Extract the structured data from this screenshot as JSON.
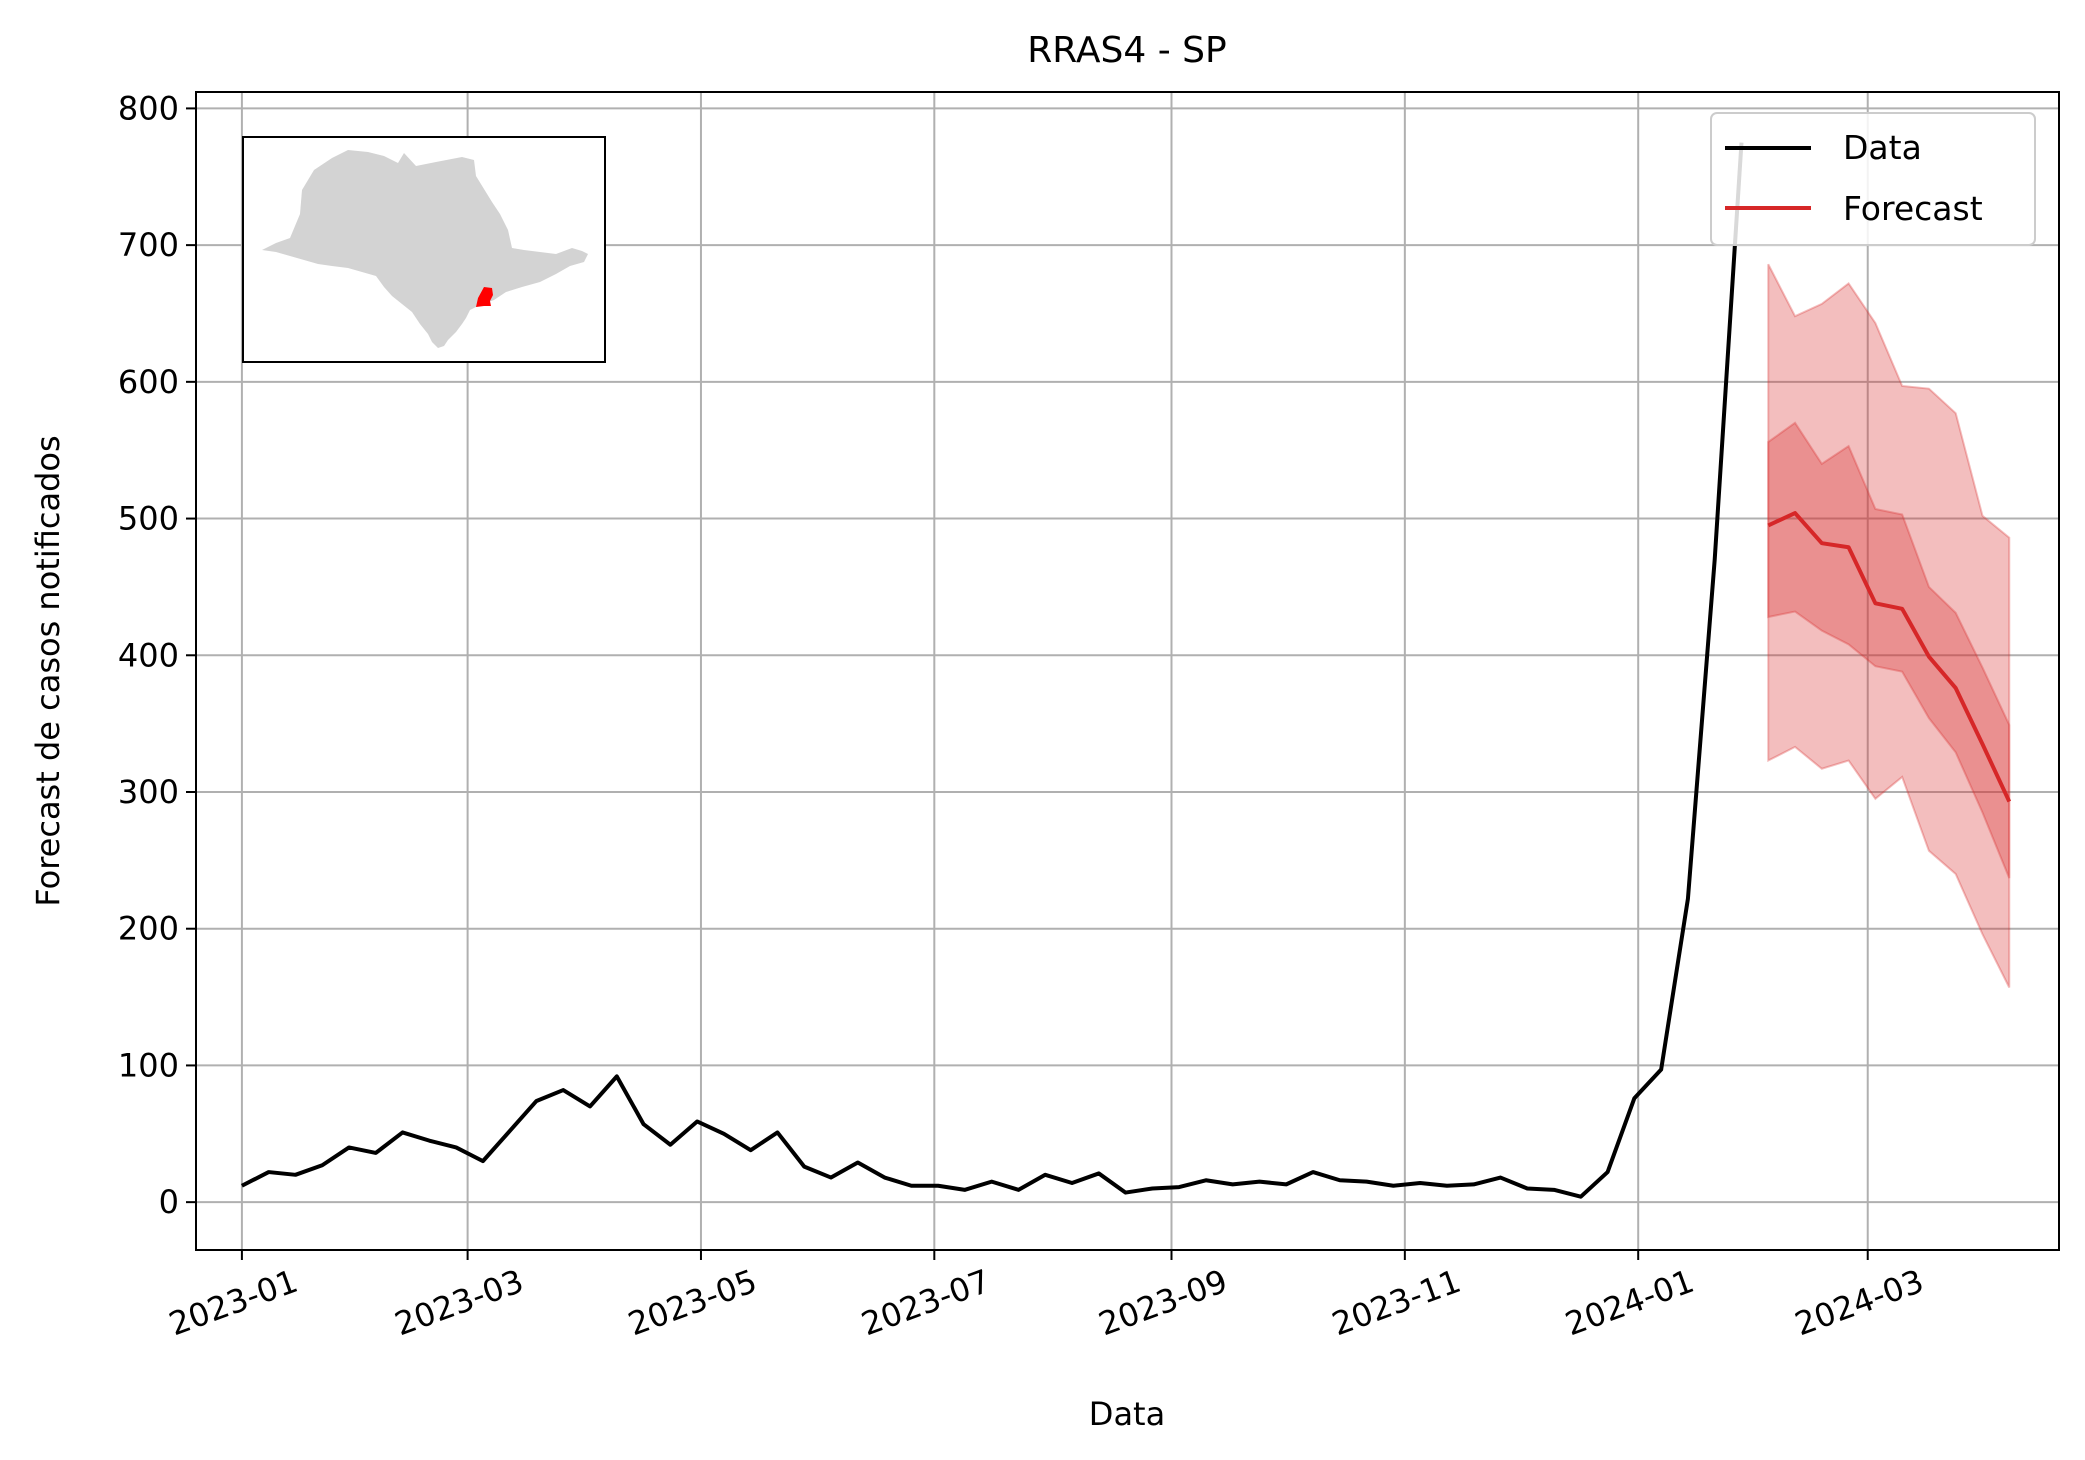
{
  "chart_data": {
    "type": "line",
    "title": "RRAS4 - SP",
    "xlabel": "Data",
    "ylabel": "Forecast de casos notificados",
    "xlim": [
      "2022-12-20",
      "2024-04-20"
    ],
    "ylim": [
      -35,
      812
    ],
    "grid": true,
    "legend_position": "top-right",
    "x_ticks": [
      {
        "date": "2023-01-01",
        "label": "2023-01"
      },
      {
        "date": "2023-03-01",
        "label": "2023-03"
      },
      {
        "date": "2023-05-01",
        "label": "2023-05"
      },
      {
        "date": "2023-07-01",
        "label": "2023-07"
      },
      {
        "date": "2023-09-01",
        "label": "2023-09"
      },
      {
        "date": "2023-11-01",
        "label": "2023-11"
      },
      {
        "date": "2024-01-01",
        "label": "2024-01"
      },
      {
        "date": "2024-03-01",
        "label": "2024-03"
      }
    ],
    "y_ticks": [
      0,
      100,
      200,
      300,
      400,
      500,
      600,
      700,
      800
    ],
    "series": [
      {
        "name": "Data",
        "color": "#000000",
        "x": [
          "2023-01-01",
          "2023-01-08",
          "2023-01-15",
          "2023-01-22",
          "2023-01-29",
          "2023-02-05",
          "2023-02-12",
          "2023-02-19",
          "2023-02-26",
          "2023-03-05",
          "2023-03-12",
          "2023-03-19",
          "2023-03-26",
          "2023-04-02",
          "2023-04-09",
          "2023-04-16",
          "2023-04-23",
          "2023-04-30",
          "2023-05-07",
          "2023-05-14",
          "2023-05-21",
          "2023-05-28",
          "2023-06-04",
          "2023-06-11",
          "2023-06-18",
          "2023-06-25",
          "2023-07-02",
          "2023-07-09",
          "2023-07-16",
          "2023-07-23",
          "2023-07-30",
          "2023-08-06",
          "2023-08-13",
          "2023-08-20",
          "2023-08-27",
          "2023-09-03",
          "2023-09-10",
          "2023-09-17",
          "2023-09-24",
          "2023-10-01",
          "2023-10-08",
          "2023-10-15",
          "2023-10-22",
          "2023-10-29",
          "2023-11-05",
          "2023-11-12",
          "2023-11-19",
          "2023-11-26",
          "2023-12-03",
          "2023-12-10",
          "2023-12-17",
          "2023-12-24",
          "2023-12-31",
          "2024-01-07",
          "2024-01-14",
          "2024-01-21",
          "2024-01-28"
        ],
        "values": [
          12,
          22,
          20,
          27,
          40,
          36,
          51,
          45,
          40,
          30,
          52,
          74,
          82,
          70,
          92,
          57,
          42,
          59,
          50,
          38,
          51,
          26,
          18,
          29,
          18,
          12,
          12,
          9,
          15,
          9,
          20,
          14,
          21,
          7,
          10,
          11,
          16,
          13,
          15,
          13,
          22,
          16,
          15,
          12,
          14,
          12,
          13,
          18,
          10,
          9,
          4,
          22,
          76,
          97,
          222,
          470,
          775
        ]
      },
      {
        "name": "Forecast",
        "color": "#d62728",
        "x": [
          "2024-02-04",
          "2024-02-11",
          "2024-02-18",
          "2024-02-25",
          "2024-03-03",
          "2024-03-10",
          "2024-03-17",
          "2024-03-24",
          "2024-03-31",
          "2024-04-07"
        ],
        "values": [
          495,
          504,
          482,
          479,
          438,
          434,
          399,
          376,
          335,
          293
        ],
        "inner_band_low": [
          428,
          432,
          418,
          408,
          392,
          388,
          354,
          329,
          285,
          237
        ],
        "inner_band_high": [
          556,
          570,
          540,
          553,
          507,
          503,
          450,
          431,
          391,
          349
        ],
        "outer_band_low": [
          323,
          333,
          317,
          323,
          295,
          311,
          257,
          240,
          196,
          157
        ],
        "outer_band_high": [
          686,
          648,
          657,
          672,
          643,
          597,
          595,
          577,
          502,
          486
        ]
      }
    ],
    "inset_map": {
      "base_color": "#d3d3d3",
      "highlight_color": "#ff0000"
    }
  }
}
